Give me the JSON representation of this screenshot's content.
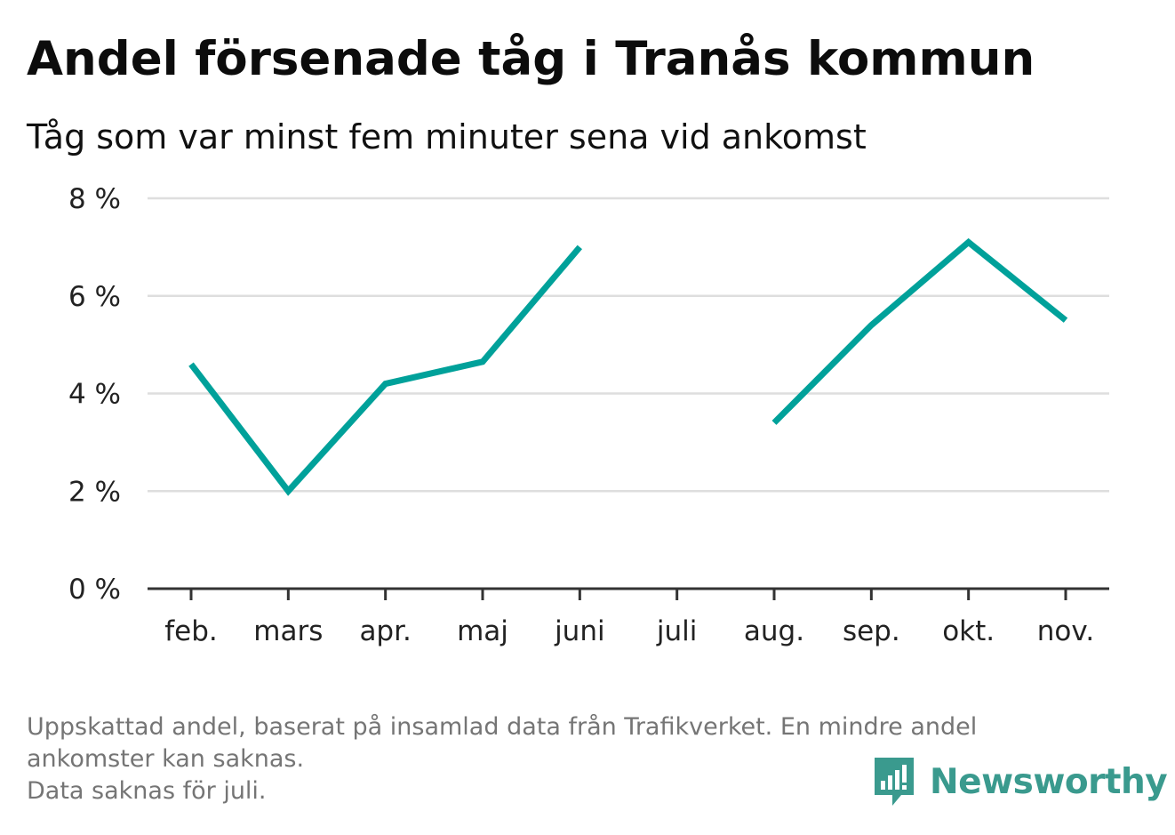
{
  "header": {
    "title": "Andel försenade tåg i Tranås kommun",
    "subtitle": "Tåg som var minst fem minuter sena vid ankomst"
  },
  "chart_data": {
    "type": "line",
    "categories": [
      "feb.",
      "mars",
      "apr.",
      "maj",
      "juni",
      "juli",
      "aug.",
      "sep.",
      "okt.",
      "nov."
    ],
    "series": [
      {
        "values": [
          4.6,
          2.0,
          4.2,
          4.65,
          7.0,
          null,
          3.4,
          5.4,
          7.1,
          5.5
        ],
        "color": "#00a19a"
      }
    ],
    "y_ticks": [
      0,
      2,
      4,
      6,
      8
    ],
    "y_tick_labels": [
      "0 %",
      "2 %",
      "4 %",
      "6 %",
      "8 %"
    ],
    "ylim": [
      0,
      8
    ],
    "grid": true,
    "legend": "none"
  },
  "footer": {
    "note_line1": "Uppskattad andel, baserat på insamlad data från Trafikverket. En mindre andel",
    "note_line2": "ankomster kan saknas.",
    "note_line3": "Data saknas för juli."
  },
  "brand": {
    "name": "Newsworthy",
    "icon": "newsworthy-logo-icon",
    "color": "#3a9a8e"
  }
}
